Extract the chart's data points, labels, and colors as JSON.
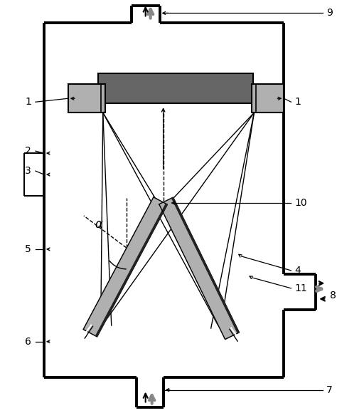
{
  "fig_width": 4.74,
  "fig_height": 5.8,
  "dpi": 100,
  "bg_color": "#ffffff",
  "dark_gray": "#666666",
  "light_gray": "#b0b0b0",
  "med_gray": "#888888",
  "lw_thick": 2.8,
  "lw_med": 1.5,
  "lw_thin": 1.0,
  "lw_label": 0.9,
  "label_fs": 10
}
